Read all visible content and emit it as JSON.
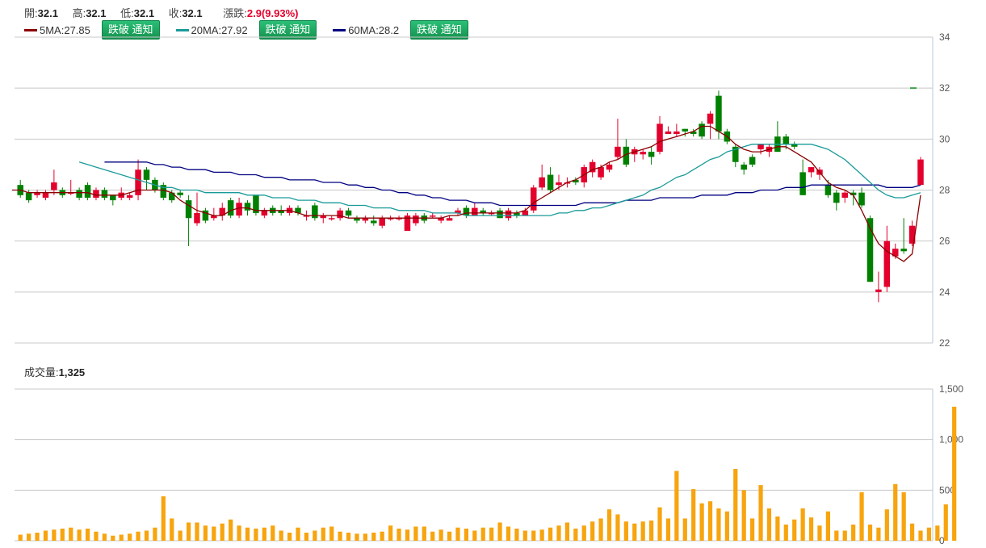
{
  "header": {
    "open_label": "開:",
    "open": "32.1",
    "high_label": "高:",
    "high": "32.1",
    "low_label": "低:",
    "low": "32.1",
    "close_label": "收:",
    "close": "32.1",
    "change_label": "漲跌:",
    "change": "2.9(9.93%)"
  },
  "ma_legend": [
    {
      "label": "5MA:27.85",
      "color": "#8b0000",
      "button": "跌破 通知"
    },
    {
      "label": "20MA:27.92",
      "color": "#1a9a9a",
      "button": "跌破 通知"
    },
    {
      "label": "60MA:28.2",
      "color": "#000080",
      "button": ""
    }
  ],
  "ma60_button": "跌破 通知",
  "volume_header": {
    "label": "成交量:",
    "value": "1,325"
  },
  "colors": {
    "up": "#e3002c",
    "down": "#008000",
    "volume": "#f7a40e",
    "ma5": "#8b0000",
    "ma20": "#1a9a9a",
    "ma60": "#000080"
  },
  "chart_data": [
    {
      "type": "candlestick",
      "ylim": [
        22,
        34
      ],
      "yticks": [
        "22",
        "24",
        "26",
        "28",
        "30",
        "32",
        "34"
      ],
      "grid": true,
      "last_close_marker": 32,
      "candles": [
        [
          28.2,
          27.8,
          28.4,
          27.7
        ],
        [
          27.9,
          27.6,
          28.0,
          27.5
        ],
        [
          27.8,
          27.9,
          28.0,
          27.7
        ],
        [
          27.7,
          27.9,
          28.0,
          27.6
        ],
        [
          28.0,
          28.3,
          28.8,
          27.8
        ],
        [
          28.0,
          27.8,
          28.1,
          27.7
        ],
        [
          27.9,
          27.9,
          28.4,
          27.8
        ],
        [
          28.0,
          27.7,
          28.1,
          27.6
        ],
        [
          28.2,
          27.7,
          28.3,
          27.6
        ],
        [
          27.7,
          28.0,
          28.1,
          27.6
        ],
        [
          28.0,
          27.7,
          28.1,
          27.6
        ],
        [
          27.8,
          27.6,
          27.8,
          27.4
        ],
        [
          27.7,
          27.9,
          28.1,
          27.6
        ],
        [
          27.7,
          27.8,
          27.9,
          27.6
        ],
        [
          27.8,
          28.8,
          29.2,
          27.6
        ],
        [
          28.8,
          28.4,
          28.9,
          28.0
        ],
        [
          28.4,
          28.0,
          28.5,
          27.9
        ],
        [
          28.2,
          27.7,
          28.3,
          27.6
        ],
        [
          27.9,
          27.6,
          28.0,
          27.5
        ],
        [
          27.9,
          27.8,
          28.0,
          27.7
        ],
        [
          27.6,
          26.9,
          27.8,
          25.8
        ],
        [
          26.7,
          27.1,
          27.9,
          26.6
        ],
        [
          27.2,
          26.8,
          27.3,
          26.7
        ],
        [
          26.9,
          27.0,
          27.3,
          26.8
        ],
        [
          27.0,
          27.3,
          27.5,
          26.8
        ],
        [
          27.6,
          27.0,
          27.7,
          26.9
        ],
        [
          27.0,
          27.5,
          27.7,
          26.9
        ],
        [
          27.5,
          27.2,
          27.6,
          27.0
        ],
        [
          27.8,
          27.1,
          27.8,
          27.0
        ],
        [
          27.0,
          27.2,
          27.3,
          26.9
        ],
        [
          27.3,
          27.1,
          27.4,
          27.0
        ],
        [
          27.2,
          27.1,
          27.4,
          27.0
        ],
        [
          27.1,
          27.3,
          27.4,
          27.0
        ],
        [
          27.3,
          27.1,
          27.4,
          27.0
        ],
        [
          27.0,
          27.0,
          27.2,
          26.8
        ],
        [
          27.4,
          26.9,
          27.5,
          26.8
        ],
        [
          26.9,
          27.0,
          27.1,
          26.7
        ],
        [
          26.9,
          26.9,
          27.0,
          26.8
        ],
        [
          26.9,
          27.2,
          27.3,
          26.8
        ],
        [
          27.2,
          27.0,
          27.3,
          26.9
        ],
        [
          26.9,
          26.8,
          27.0,
          26.7
        ],
        [
          26.8,
          26.9,
          27.0,
          26.7
        ],
        [
          26.8,
          26.7,
          27.0,
          26.6
        ],
        [
          26.6,
          26.9,
          27.0,
          26.5
        ],
        [
          26.9,
          26.9,
          27.0,
          26.8
        ],
        [
          26.9,
          26.9,
          27.0,
          26.8
        ],
        [
          26.4,
          27.0,
          27.1,
          26.4
        ],
        [
          26.7,
          27.0,
          27.1,
          26.6
        ],
        [
          27.0,
          26.8,
          27.1,
          26.7
        ],
        [
          27.0,
          27.0,
          27.1,
          26.9
        ],
        [
          26.8,
          26.9,
          27.0,
          26.7
        ],
        [
          26.8,
          26.9,
          27.0,
          26.8
        ],
        [
          27.1,
          27.2,
          27.3,
          27.0
        ],
        [
          27.3,
          27.0,
          27.4,
          26.9
        ],
        [
          27.0,
          27.3,
          27.5,
          27.0
        ],
        [
          27.2,
          27.1,
          27.3,
          27.0
        ],
        [
          27.1,
          27.1,
          27.2,
          27.0
        ],
        [
          27.2,
          26.9,
          27.3,
          26.9
        ],
        [
          26.9,
          27.2,
          27.3,
          26.8
        ],
        [
          27.1,
          27.0,
          27.2,
          26.9
        ],
        [
          27.0,
          27.2,
          27.3,
          27.0
        ],
        [
          27.2,
          28.1,
          28.2,
          27.1
        ],
        [
          28.1,
          28.5,
          29.0,
          28.0
        ],
        [
          28.6,
          28.0,
          28.9,
          27.9
        ],
        [
          28.2,
          28.3,
          28.6,
          28.0
        ],
        [
          28.3,
          28.3,
          28.5,
          28.1
        ],
        [
          28.4,
          28.3,
          28.5,
          28.2
        ],
        [
          28.3,
          28.9,
          29.0,
          28.1
        ],
        [
          28.7,
          29.1,
          29.2,
          28.5
        ],
        [
          28.5,
          28.9,
          29.0,
          28.4
        ],
        [
          28.8,
          29.0,
          29.1,
          28.7
        ],
        [
          29.3,
          29.7,
          30.8,
          29.2
        ],
        [
          29.7,
          29.0,
          30.0,
          28.9
        ],
        [
          29.4,
          29.6,
          29.7,
          29.1
        ],
        [
          29.4,
          29.5,
          29.6,
          29.2
        ],
        [
          29.5,
          29.3,
          29.7,
          29.0
        ],
        [
          29.5,
          30.6,
          30.9,
          29.4
        ],
        [
          30.2,
          30.3,
          30.5,
          30.2
        ],
        [
          30.2,
          30.3,
          30.6,
          30.1
        ],
        [
          30.4,
          30.3,
          30.4,
          30.1
        ],
        [
          30.3,
          30.2,
          30.4,
          30.1
        ],
        [
          30.6,
          30.1,
          30.7,
          30.0
        ],
        [
          30.6,
          31.0,
          31.1,
          30.0
        ],
        [
          31.7,
          30.3,
          31.9,
          30.0
        ],
        [
          30.3,
          29.9,
          30.4,
          29.8
        ],
        [
          29.7,
          29.1,
          29.8,
          28.9
        ],
        [
          29.0,
          28.8,
          29.1,
          28.6
        ],
        [
          29.3,
          29.0,
          29.4,
          28.9
        ],
        [
          29.6,
          29.8,
          29.8,
          29.4
        ],
        [
          29.5,
          29.7,
          29.8,
          29.3
        ],
        [
          30.1,
          29.5,
          30.7,
          29.5
        ],
        [
          30.1,
          29.8,
          30.2,
          29.6
        ],
        [
          29.8,
          29.7,
          29.9,
          29.6
        ],
        [
          28.7,
          27.8,
          29.2,
          27.8
        ],
        [
          28.7,
          28.9,
          28.9,
          28.5
        ],
        [
          28.6,
          28.8,
          28.9,
          28.4
        ],
        [
          28.2,
          27.8,
          28.4,
          27.7
        ],
        [
          27.9,
          27.5,
          28.0,
          27.2
        ],
        [
          27.7,
          27.9,
          28.0,
          27.5
        ],
        [
          27.9,
          27.8,
          28.0,
          27.4
        ],
        [
          27.9,
          27.4,
          28.1,
          27.3
        ],
        [
          26.9,
          24.4,
          27.0,
          24.4
        ],
        [
          24.0,
          24.1,
          24.8,
          23.6
        ],
        [
          24.2,
          26.0,
          26.6,
          24.0
        ],
        [
          25.4,
          25.7,
          25.9,
          25.3
        ],
        [
          25.7,
          25.6,
          26.9,
          25.5
        ],
        [
          25.9,
          26.6,
          26.8,
          25.8
        ],
        [
          28.2,
          29.2,
          29.3,
          28.2
        ]
      ],
      "ma5": [
        28.0,
        28.0,
        27.9,
        27.9,
        27.9,
        27.9,
        27.9,
        27.9,
        27.9,
        27.9,
        27.8,
        27.8,
        27.8,
        27.8,
        27.9,
        28.0,
        28.0,
        28.0,
        28.0,
        27.9,
        27.6,
        27.4,
        27.2,
        27.1,
        27.0,
        27.0,
        27.2,
        27.3,
        27.3,
        27.2,
        27.2,
        27.2,
        27.2,
        27.2,
        27.1,
        27.0,
        27.0,
        27.0,
        27.0,
        27.0,
        26.9,
        26.9,
        26.9,
        26.9,
        26.9,
        26.9,
        26.9,
        26.9,
        26.9,
        26.9,
        26.9,
        26.9,
        27.0,
        27.0,
        27.1,
        27.1,
        27.1,
        27.1,
        27.1,
        27.1,
        27.1,
        27.2,
        27.5,
        27.7,
        27.9,
        28.1,
        28.3,
        28.4,
        28.6,
        28.8,
        28.9,
        29.1,
        29.2,
        29.4,
        29.5,
        29.6,
        29.7,
        29.9,
        30.0,
        30.1,
        30.2,
        30.3,
        30.5,
        30.5,
        30.3,
        30.1,
        29.8,
        29.6,
        29.5,
        29.5,
        29.6,
        29.7,
        29.7,
        29.5,
        29.3,
        29.1,
        28.7,
        28.3,
        28.1,
        28.0,
        27.8,
        27.2,
        26.5,
        25.9,
        25.6,
        25.4,
        25.2,
        25.5,
        27.8
      ],
      "ma20": [
        29.1,
        29.0,
        28.9,
        28.8,
        28.7,
        28.6,
        28.5,
        28.4,
        28.3,
        28.2,
        28.1,
        28.1,
        28.0,
        28.0,
        28.0,
        27.9,
        27.9,
        27.9,
        27.9,
        27.9,
        27.8,
        27.8,
        27.8,
        27.7,
        27.7,
        27.7,
        27.6,
        27.6,
        27.6,
        27.5,
        27.5,
        27.5,
        27.4,
        27.4,
        27.4,
        27.3,
        27.3,
        27.3,
        27.2,
        27.2,
        27.2,
        27.2,
        27.1,
        27.1,
        27.1,
        27.1,
        27.0,
        27.0,
        27.0,
        27.0,
        27.0,
        27.0,
        27.0,
        27.0,
        27.0,
        27.0,
        27.0,
        27.1,
        27.1,
        27.2,
        27.2,
        27.3,
        27.3,
        27.4,
        27.5,
        27.6,
        27.7,
        27.8,
        28.0,
        28.1,
        28.3,
        28.5,
        28.6,
        28.8,
        29.0,
        29.2,
        29.3,
        29.5,
        29.6,
        29.7,
        29.8,
        29.8,
        29.8,
        29.8,
        29.8,
        29.8,
        29.8,
        29.8,
        29.7,
        29.6,
        29.4,
        29.2,
        28.9,
        28.6,
        28.3,
        28.0,
        27.8,
        27.7,
        27.7,
        27.8,
        27.9
      ],
      "ma60": [
        29.1,
        29.1,
        29.1,
        29.1,
        29.1,
        29.1,
        29.0,
        29.0,
        28.9,
        28.9,
        28.8,
        28.8,
        28.8,
        28.7,
        28.7,
        28.7,
        28.6,
        28.6,
        28.6,
        28.5,
        28.5,
        28.5,
        28.4,
        28.4,
        28.4,
        28.4,
        28.3,
        28.3,
        28.3,
        28.2,
        28.2,
        28.1,
        28.1,
        28.0,
        28.0,
        27.9,
        27.9,
        27.8,
        27.8,
        27.7,
        27.7,
        27.6,
        27.6,
        27.6,
        27.5,
        27.5,
        27.5,
        27.4,
        27.4,
        27.4,
        27.4,
        27.4,
        27.4,
        27.4,
        27.4,
        27.4,
        27.4,
        27.5,
        27.5,
        27.5,
        27.5,
        27.5,
        27.6,
        27.6,
        27.6,
        27.6,
        27.7,
        27.7,
        27.7,
        27.7,
        27.7,
        27.8,
        27.8,
        27.8,
        27.8,
        27.9,
        27.9,
        27.9,
        28.0,
        28.0,
        28.0,
        28.1,
        28.1,
        28.1,
        28.2,
        28.2,
        28.2,
        28.2,
        28.2,
        28.2,
        28.2,
        28.2,
        28.2,
        28.1,
        28.1,
        28.1,
        28.1,
        28.2
      ],
      "ma20_start": 0,
      "ma60_start": 0
    },
    {
      "type": "bar",
      "ylim": [
        0,
        1500
      ],
      "yticks": [
        "0",
        "500",
        "1,000",
        "1,500"
      ],
      "grid": true,
      "values": [
        60,
        70,
        80,
        100,
        110,
        120,
        130,
        110,
        120,
        90,
        70,
        50,
        60,
        70,
        90,
        100,
        130,
        440,
        220,
        100,
        180,
        180,
        150,
        140,
        170,
        210,
        150,
        130,
        120,
        130,
        150,
        100,
        80,
        130,
        80,
        100,
        130,
        140,
        90,
        80,
        70,
        70,
        80,
        90,
        150,
        120,
        110,
        140,
        140,
        90,
        110,
        90,
        130,
        120,
        100,
        130,
        130,
        180,
        140,
        120,
        100,
        100,
        110,
        130,
        150,
        180,
        120,
        150,
        190,
        220,
        310,
        260,
        190,
        170,
        190,
        200,
        330,
        220,
        690,
        220,
        510,
        370,
        390,
        320,
        290,
        710,
        500,
        220,
        550,
        320,
        240,
        160,
        210,
        320,
        230,
        150,
        290,
        100,
        100,
        160,
        480,
        160,
        130,
        310,
        560,
        480,
        170,
        100,
        130,
        150,
        360,
        1325
      ]
    }
  ]
}
